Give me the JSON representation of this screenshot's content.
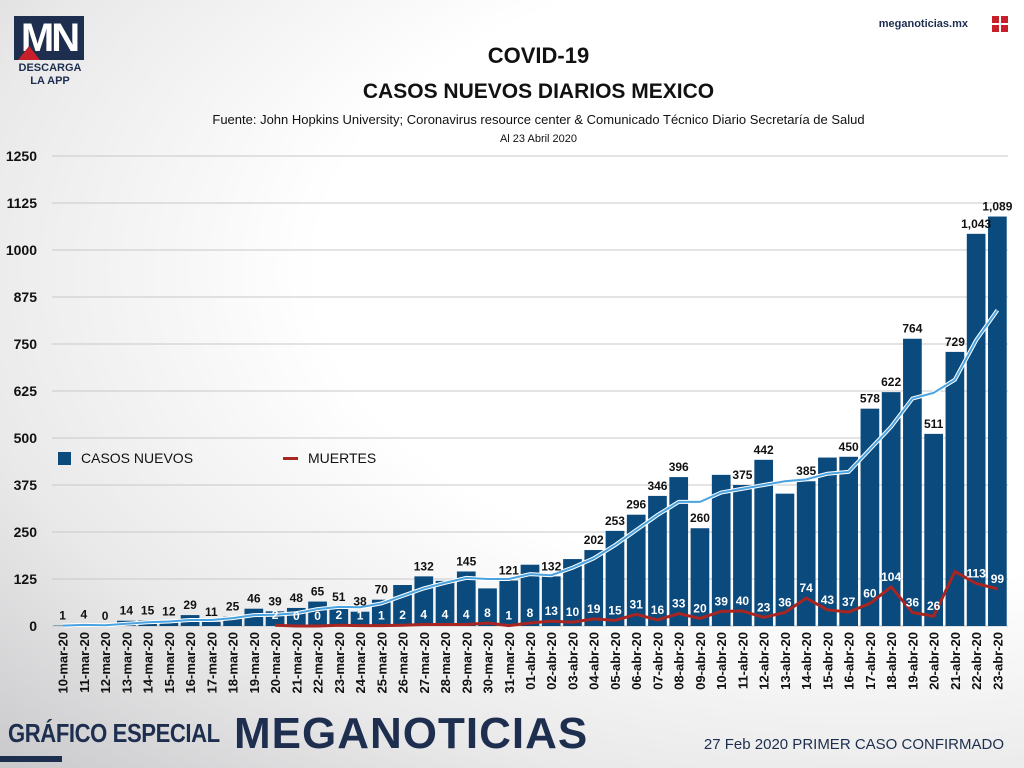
{
  "header": {
    "logo_letters": "MN",
    "logo_caption_1": "DESCARGA",
    "logo_caption_2": "LA APP",
    "site": "meganoticias.mx",
    "title": "COVID-19",
    "subtitle": "CASOS NUEVOS DIARIOS MEXICO",
    "source": "Fuente: John Hopkins University; Coronavirus resource center & Comunicado Técnico Diario Secretaría de Salud",
    "date_note": "Al 23 Abril 2020"
  },
  "footer": {
    "left": "GRÁFICO ESPECIAL",
    "brand": "MEGANOTICIAS",
    "right": "27 Feb 2020 PRIMER CASO CONFIRMADO"
  },
  "colors": {
    "bars": "#0b4a7d",
    "deaths_line": "#a82521",
    "trend_line": "#4aa3e0",
    "grid": "#c8c8c8"
  },
  "chart_data": {
    "type": "bar",
    "title": "COVID-19",
    "subtitle": "CASOS NUEVOS DIARIOS MEXICO",
    "ylim": [
      0,
      1250
    ],
    "yticks": [
      0,
      125,
      250,
      375,
      500,
      625,
      750,
      875,
      1000,
      1125,
      1250
    ],
    "grid": true,
    "legend_placement": "center-left",
    "categories": [
      "10-mar-20",
      "11-mar-20",
      "12-mar-20",
      "13-mar-20",
      "14-mar-20",
      "15-mar-20",
      "16-mar-20",
      "17-mar-20",
      "18-mar-20",
      "19-mar-20",
      "20-mar-20",
      "21-mar-20",
      "22-mar-20",
      "23-mar-20",
      "24-mar-20",
      "25-mar-20",
      "26-mar-20",
      "27-mar-20",
      "28-mar-20",
      "29-mar-20",
      "30-mar-20",
      "31-mar-20",
      "01-abr-20",
      "02-abr-20",
      "03-abr-20",
      "04-abr-20",
      "05-abr-20",
      "06-abr-20",
      "07-abr-20",
      "08-abr-20",
      "09-abr-20",
      "10-abr-20",
      "11-abr-20",
      "12-abr-20",
      "13-abr-20",
      "14-abr-20",
      "15-abr-20",
      "16-abr-20",
      "17-abr-20",
      "18-abr-20",
      "19-abr-20",
      "20-abr-20",
      "21-abr-20",
      "22-abr-20",
      "23-abr-20"
    ],
    "series": [
      {
        "name": "CASOS NUEVOS",
        "kind": "bar",
        "values": [
          1,
          4,
          0,
          14,
          15,
          12,
          29,
          11,
          25,
          46,
          39,
          48,
          65,
          51,
          38,
          70,
          109,
          132,
          120,
          145,
          100,
          121,
          163,
          132,
          178,
          202,
          253,
          296,
          346,
          396,
          260,
          402,
          375,
          442,
          352,
          385,
          448,
          450,
          578,
          622,
          764,
          511,
          729,
          1043,
          1089
        ],
        "labels": [
          "1",
          "4",
          "0",
          "14",
          "15",
          "12",
          "29",
          "11",
          "25",
          "46",
          "39",
          "48",
          "65",
          "51",
          "38",
          "70",
          "",
          "132",
          "",
          "145",
          "",
          "121",
          "",
          "132",
          "",
          "202",
          "253",
          "296",
          "346",
          "396",
          "260",
          "",
          "375",
          "442",
          "",
          "385",
          "",
          "450",
          "578",
          "622",
          "764",
          "511",
          "729",
          "1,043",
          "1,089"
        ]
      },
      {
        "name": "MUERTES",
        "kind": "line",
        "values": [
          null,
          null,
          null,
          null,
          null,
          null,
          null,
          null,
          null,
          null,
          2,
          0,
          0,
          2,
          1,
          1,
          2,
          4,
          4,
          4,
          8,
          1,
          8,
          13,
          10,
          19,
          15,
          31,
          16,
          33,
          20,
          39,
          40,
          23,
          36,
          74,
          43,
          37,
          60,
          104,
          36,
          26,
          145,
          113,
          99
        ],
        "labels": [
          "",
          "",
          "",
          "",
          "",
          "",
          "",
          "",
          "",
          "",
          "2",
          "0",
          "0",
          "2",
          "1",
          "1",
          "2",
          "4",
          "4",
          "4",
          "8",
          "1",
          "8",
          "13",
          "10",
          "19",
          "15",
          "31",
          "16",
          "33",
          "20",
          "39",
          "40",
          "23",
          "36",
          "74",
          "43",
          "37",
          "60",
          "104",
          "36",
          "26",
          "",
          "113",
          "99"
        ]
      },
      {
        "kind": "trend",
        "values": [
          1,
          3,
          2,
          6,
          10,
          12,
          16,
          16,
          21,
          29,
          30,
          34,
          45,
          51,
          50,
          60,
          80,
          100,
          115,
          128,
          125,
          125,
          138,
          135,
          155,
          180,
          215,
          255,
          295,
          330,
          330,
          355,
          365,
          375,
          385,
          390,
          405,
          410,
          470,
          530,
          605,
          620,
          655,
          760,
          840
        ]
      }
    ]
  }
}
